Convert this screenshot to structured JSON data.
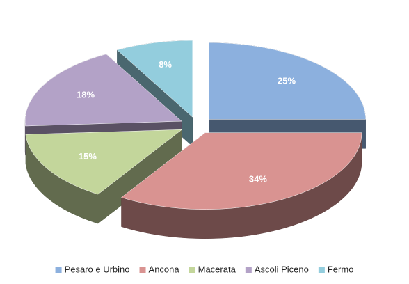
{
  "chart_data": {
    "type": "pie",
    "categories": [
      "Pesaro e Urbino",
      "Ancona",
      "Macerata",
      "Ascoli Piceno",
      "Fermo"
    ],
    "values": [
      25,
      34,
      15,
      18,
      8
    ],
    "value_labels": [
      "25%",
      "34%",
      "15%",
      "18%",
      "8%"
    ],
    "colors": [
      "#8cb0de",
      "#d99391",
      "#c3d69b",
      "#b3a2c7",
      "#93cddd"
    ],
    "legend": "bottom"
  }
}
